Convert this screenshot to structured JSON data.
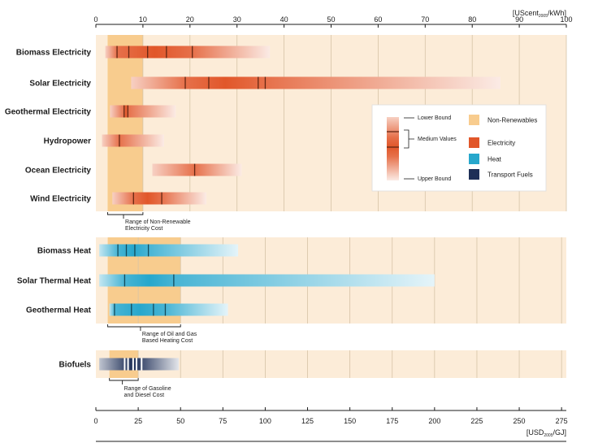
{
  "chart_data": {
    "type": "bar",
    "top_axis": {
      "unit_main": "[UScent",
      "unit_sub": "2005",
      "unit_tail": "/kWh]",
      "range": [
        0,
        100
      ],
      "ticks": [
        "0",
        "10",
        "20",
        "30",
        "40",
        "50",
        "60",
        "70",
        "80",
        "90",
        "100"
      ]
    },
    "bottom_axis": {
      "unit_main": "[USD",
      "unit_sub": "2005",
      "unit_tail": "/GJ]",
      "range": [
        0,
        277.8
      ],
      "ticks": [
        "0",
        "25",
        "50",
        "75",
        "100",
        "125",
        "150",
        "175",
        "200",
        "225",
        "250",
        "275"
      ]
    },
    "groups": [
      {
        "id": "electricity",
        "scale": "top",
        "color": "#e1572a",
        "nonrenewable_range": [
          2.5,
          10
        ],
        "range_note": "Range of Non-Renewable Electricity Cost",
        "range_note_lines": [
          "Range of Non-Renewable",
          "Electricity Cost"
        ],
        "items": [
          {
            "label": "Biomass Electricity",
            "low": 2,
            "high": 37,
            "medium": [
              4.5,
              7,
              11,
              15,
              20.5
            ]
          },
          {
            "label": "Solar Electricity",
            "low": 7.5,
            "high": 86,
            "medium": [
              19,
              24,
              34.5,
              36
            ]
          },
          {
            "label": "Geothermal Electricity",
            "low": 3,
            "high": 17,
            "medium": [
              6,
              6.8
            ]
          },
          {
            "label": "Hydropower",
            "low": 1.3,
            "high": 14.5,
            "medium": [
              5
            ]
          },
          {
            "label": "Ocean Electricity",
            "low": 12,
            "high": 31,
            "medium": [
              21
            ]
          },
          {
            "label": "Wind Electricity",
            "low": 3.5,
            "high": 23.5,
            "medium": [
              8,
              14
            ]
          }
        ]
      },
      {
        "id": "heat",
        "scale": "bottom",
        "color": "#27a7cc",
        "nonrenewable_range": [
          7,
          50
        ],
        "range_note": "Range of Oil and Gas Based Heating Cost",
        "range_note_lines": [
          "Range of Oil and Gas",
          "Based Heating Cost"
        ],
        "items": [
          {
            "label": "Biomass Heat",
            "low": 2,
            "high": 84,
            "medium": [
              13,
              18,
              23,
              31
            ]
          },
          {
            "label": "Solar Thermal Heat",
            "low": 2,
            "high": 200,
            "medium": [
              17,
              46
            ]
          },
          {
            "label": "Geothermal Heat",
            "low": 8,
            "high": 78,
            "medium": [
              11,
              21,
              34,
              41
            ]
          }
        ]
      },
      {
        "id": "transport",
        "scale": "bottom",
        "color": "#1e2f57",
        "nonrenewable_range": [
          8,
          25
        ],
        "range_note": "Range of Gasoline and Diesel Cost",
        "range_note_lines": [
          "Range of Gasoline",
          "and Diesel Cost"
        ],
        "items": [
          {
            "label": "Biofuels",
            "low": 2,
            "high": 49,
            "medium": [
              17,
              19,
              22,
              24,
              27
            ]
          }
        ]
      }
    ],
    "legend": {
      "position": "right",
      "bound_labels": [
        "Lower Bound",
        "Medium Values",
        "Upper Bound"
      ],
      "categories": [
        {
          "label": "Non-Renewables",
          "color": "#f8cc8e"
        },
        {
          "label": "Electricity",
          "color": "#e1572a"
        },
        {
          "label": "Heat",
          "color": "#27a7cc"
        },
        {
          "label": "Transport Fuels",
          "color": "#1e2f57"
        }
      ]
    },
    "grid": true
  }
}
